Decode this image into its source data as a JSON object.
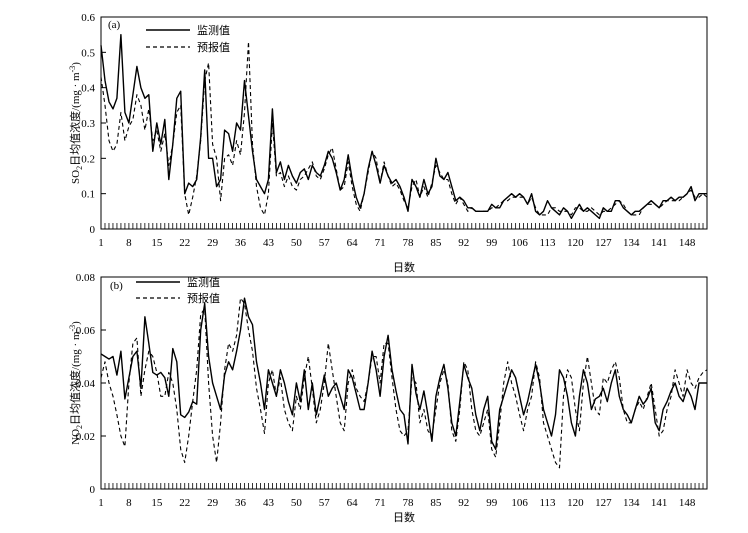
{
  "chart_data": [
    {
      "type": "line",
      "panel_label": "(a)",
      "xlabel": "日数",
      "ylabel_main": "SO",
      "ylabel_sub": "2",
      "ylabel_rest": "日均值浓度/(mg · m",
      "ylabel_sup": "-3",
      "ylabel_close": ")",
      "ylim": [
        0,
        0.6
      ],
      "yticks": [
        0,
        0.1,
        0.2,
        0.3,
        0.4,
        0.5,
        0.6
      ],
      "ytick_labels": [
        "0",
        "0.1",
        "0.2",
        "0.3",
        "0.4",
        "0.5",
        "0.6"
      ],
      "xlim": [
        1,
        153
      ],
      "xticks": [
        1,
        8,
        15,
        22,
        29,
        36,
        43,
        50,
        57,
        64,
        71,
        78,
        85,
        92,
        99,
        106,
        113,
        120,
        127,
        134,
        141,
        148
      ],
      "legend": [
        "监测值",
        "预报值"
      ],
      "series": [
        {
          "name": "监测值",
          "style": "solid",
          "values": [
            0.52,
            0.42,
            0.36,
            0.34,
            0.37,
            0.55,
            0.33,
            0.3,
            0.38,
            0.46,
            0.4,
            0.37,
            0.38,
            0.22,
            0.3,
            0.24,
            0.31,
            0.14,
            0.24,
            0.37,
            0.39,
            0.1,
            0.13,
            0.12,
            0.14,
            0.26,
            0.45,
            0.2,
            0.2,
            0.12,
            0.14,
            0.28,
            0.27,
            0.22,
            0.3,
            0.28,
            0.42,
            0.32,
            0.22,
            0.14,
            0.12,
            0.1,
            0.14,
            0.34,
            0.16,
            0.19,
            0.14,
            0.18,
            0.15,
            0.13,
            0.16,
            0.17,
            0.14,
            0.18,
            0.16,
            0.15,
            0.18,
            0.22,
            0.2,
            0.16,
            0.11,
            0.14,
            0.21,
            0.14,
            0.09,
            0.06,
            0.1,
            0.17,
            0.22,
            0.18,
            0.13,
            0.18,
            0.15,
            0.13,
            0.14,
            0.12,
            0.09,
            0.05,
            0.14,
            0.12,
            0.09,
            0.14,
            0.1,
            0.12,
            0.2,
            0.15,
            0.14,
            0.16,
            0.12,
            0.08,
            0.09,
            0.08,
            0.06,
            0.06,
            0.05,
            0.05,
            0.05,
            0.05,
            0.07,
            0.06,
            0.06,
            0.08,
            0.09,
            0.1,
            0.09,
            0.1,
            0.09,
            0.07,
            0.1,
            0.05,
            0.04,
            0.05,
            0.08,
            0.06,
            0.05,
            0.04,
            0.06,
            0.05,
            0.03,
            0.05,
            0.07,
            0.05,
            0.06,
            0.05,
            0.04,
            0.03,
            0.06,
            0.05,
            0.05,
            0.08,
            0.08,
            0.06,
            0.05,
            0.04,
            0.05,
            0.05,
            0.06,
            0.07,
            0.08,
            0.07,
            0.06,
            0.08,
            0.08,
            0.09,
            0.08,
            0.09,
            0.09,
            0.1,
            0.12,
            0.08,
            0.1,
            0.1,
            0.1
          ]
        },
        {
          "name": "预报值",
          "style": "dashed",
          "values": [
            0.43,
            0.35,
            0.25,
            0.22,
            0.24,
            0.33,
            0.25,
            0.29,
            0.31,
            0.38,
            0.35,
            0.28,
            0.34,
            0.25,
            0.28,
            0.22,
            0.27,
            0.18,
            0.24,
            0.33,
            0.35,
            0.1,
            0.04,
            0.09,
            0.15,
            0.25,
            0.42,
            0.47,
            0.24,
            0.2,
            0.08,
            0.2,
            0.21,
            0.18,
            0.25,
            0.21,
            0.33,
            0.53,
            0.24,
            0.12,
            0.06,
            0.04,
            0.1,
            0.3,
            0.15,
            0.16,
            0.12,
            0.15,
            0.12,
            0.11,
            0.14,
            0.15,
            0.17,
            0.19,
            0.15,
            0.14,
            0.17,
            0.21,
            0.23,
            0.17,
            0.11,
            0.12,
            0.19,
            0.12,
            0.07,
            0.05,
            0.1,
            0.16,
            0.22,
            0.2,
            0.13,
            0.19,
            0.15,
            0.12,
            0.13,
            0.11,
            0.08,
            0.06,
            0.12,
            0.14,
            0.09,
            0.12,
            0.09,
            0.13,
            0.18,
            0.16,
            0.14,
            0.14,
            0.1,
            0.07,
            0.09,
            0.07,
            0.05,
            0.06,
            0.05,
            0.05,
            0.05,
            0.05,
            0.06,
            0.06,
            0.07,
            0.08,
            0.08,
            0.09,
            0.09,
            0.09,
            0.09,
            0.07,
            0.09,
            0.06,
            0.04,
            0.04,
            0.04,
            0.06,
            0.06,
            0.05,
            0.05,
            0.05,
            0.04,
            0.06,
            0.06,
            0.05,
            0.05,
            0.06,
            0.05,
            0.04,
            0.05,
            0.05,
            0.06,
            0.07,
            0.08,
            0.07,
            0.05,
            0.04,
            0.04,
            0.04,
            0.06,
            0.07,
            0.07,
            0.07,
            0.06,
            0.07,
            0.08,
            0.08,
            0.08,
            0.08,
            0.09,
            0.1,
            0.11,
            0.09,
            0.09,
            0.1,
            0.09
          ]
        }
      ]
    },
    {
      "type": "line",
      "panel_label": "(b)",
      "xlabel": "日数",
      "ylabel_main": "NO",
      "ylabel_sub": "2",
      "ylabel_rest": "日均值浓度/(mg · m",
      "ylabel_sup": "-3",
      "ylabel_close": ")",
      "ylim": [
        0,
        0.08
      ],
      "yticks": [
        0,
        0.02,
        0.04,
        0.06,
        0.08
      ],
      "ytick_labels": [
        "0",
        "0.02",
        "0.04",
        "0.06",
        "0.08"
      ],
      "xlim": [
        1,
        153
      ],
      "xticks": [
        1,
        8,
        15,
        22,
        29,
        36,
        43,
        50,
        57,
        64,
        71,
        78,
        85,
        92,
        99,
        106,
        113,
        120,
        127,
        134,
        141,
        148
      ],
      "legend": [
        "监测值",
        "预报值"
      ],
      "series": [
        {
          "name": "监测值",
          "style": "solid",
          "values": [
            0.051,
            0.05,
            0.049,
            0.05,
            0.043,
            0.052,
            0.034,
            0.042,
            0.05,
            0.052,
            0.038,
            0.065,
            0.055,
            0.044,
            0.043,
            0.044,
            0.042,
            0.035,
            0.053,
            0.048,
            0.028,
            0.027,
            0.029,
            0.033,
            0.032,
            0.06,
            0.07,
            0.05,
            0.04,
            0.035,
            0.03,
            0.043,
            0.048,
            0.045,
            0.052,
            0.06,
            0.072,
            0.065,
            0.062,
            0.048,
            0.04,
            0.03,
            0.045,
            0.04,
            0.035,
            0.045,
            0.04,
            0.033,
            0.028,
            0.04,
            0.033,
            0.045,
            0.03,
            0.04,
            0.028,
            0.035,
            0.043,
            0.035,
            0.038,
            0.04,
            0.035,
            0.03,
            0.045,
            0.042,
            0.036,
            0.03,
            0.03,
            0.04,
            0.052,
            0.045,
            0.035,
            0.05,
            0.058,
            0.045,
            0.037,
            0.03,
            0.028,
            0.017,
            0.047,
            0.036,
            0.03,
            0.037,
            0.028,
            0.018,
            0.035,
            0.042,
            0.047,
            0.038,
            0.025,
            0.02,
            0.033,
            0.047,
            0.042,
            0.038,
            0.028,
            0.022,
            0.03,
            0.035,
            0.018,
            0.015,
            0.03,
            0.035,
            0.04,
            0.045,
            0.042,
            0.035,
            0.028,
            0.033,
            0.04,
            0.047,
            0.04,
            0.03,
            0.025,
            0.02,
            0.028,
            0.045,
            0.042,
            0.035,
            0.025,
            0.02,
            0.035,
            0.045,
            0.04,
            0.03,
            0.034,
            0.035,
            0.038,
            0.033,
            0.04,
            0.045,
            0.035,
            0.03,
            0.028,
            0.025,
            0.03,
            0.035,
            0.032,
            0.034,
            0.038,
            0.025,
            0.022,
            0.03,
            0.033,
            0.037,
            0.04,
            0.035,
            0.033,
            0.038,
            0.035,
            0.03,
            0.04,
            0.04,
            0.04
          ]
        },
        {
          "name": "预报值",
          "style": "dashed",
          "values": [
            0.042,
            0.048,
            0.04,
            0.035,
            0.028,
            0.02,
            0.016,
            0.04,
            0.055,
            0.057,
            0.035,
            0.045,
            0.052,
            0.05,
            0.044,
            0.035,
            0.035,
            0.044,
            0.04,
            0.03,
            0.015,
            0.01,
            0.02,
            0.033,
            0.045,
            0.066,
            0.068,
            0.04,
            0.02,
            0.01,
            0.025,
            0.045,
            0.055,
            0.052,
            0.058,
            0.072,
            0.07,
            0.06,
            0.052,
            0.038,
            0.03,
            0.021,
            0.04,
            0.045,
            0.035,
            0.042,
            0.03,
            0.025,
            0.022,
            0.035,
            0.03,
            0.042,
            0.05,
            0.038,
            0.025,
            0.03,
            0.04,
            0.055,
            0.045,
            0.035,
            0.025,
            0.022,
            0.04,
            0.045,
            0.038,
            0.035,
            0.033,
            0.04,
            0.05,
            0.05,
            0.04,
            0.055,
            0.055,
            0.042,
            0.03,
            0.022,
            0.02,
            0.022,
            0.042,
            0.04,
            0.025,
            0.03,
            0.022,
            0.02,
            0.03,
            0.04,
            0.045,
            0.04,
            0.022,
            0.018,
            0.03,
            0.048,
            0.045,
            0.03,
            0.022,
            0.02,
            0.025,
            0.03,
            0.015,
            0.012,
            0.025,
            0.04,
            0.048,
            0.04,
            0.035,
            0.028,
            0.022,
            0.03,
            0.035,
            0.048,
            0.042,
            0.025,
            0.02,
            0.015,
            0.01,
            0.008,
            0.035,
            0.045,
            0.042,
            0.03,
            0.022,
            0.04,
            0.05,
            0.04,
            0.03,
            0.028,
            0.042,
            0.04,
            0.045,
            0.048,
            0.042,
            0.03,
            0.025,
            0.025,
            0.03,
            0.033,
            0.03,
            0.035,
            0.04,
            0.03,
            0.02,
            0.022,
            0.03,
            0.035,
            0.045,
            0.04,
            0.035,
            0.045,
            0.04,
            0.038,
            0.042,
            0.044,
            0.045
          ]
        }
      ]
    }
  ]
}
